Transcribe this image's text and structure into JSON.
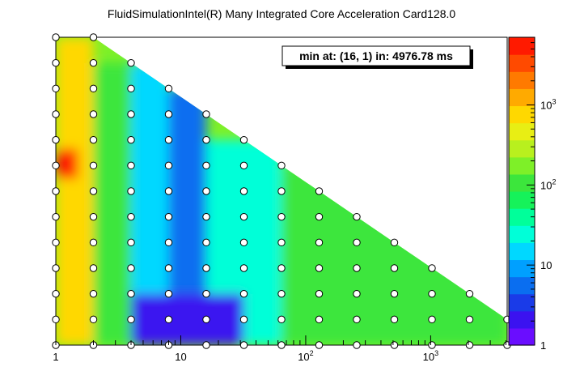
{
  "chart_data": {
    "type": "heatmap",
    "title": "FluidSimulationIntel(R) Many Integrated Core Acceleration Card128.0",
    "annotation": "min at: (16, 1) in: 4976.78 ms",
    "x_scale": "log2",
    "y_scale": "log2",
    "x_range": [
      1,
      4096
    ],
    "y_range": [
      1,
      4096
    ],
    "x_ticks": [
      {
        "value": 1,
        "label": "1"
      },
      {
        "value": 10,
        "label": "10"
      },
      {
        "value": 100,
        "label": "10",
        "sup": "2"
      },
      {
        "value": 1000,
        "label": "10",
        "sup": "3"
      }
    ],
    "z_scale": "log10",
    "z_range": [
      1,
      7000
    ],
    "z_ticks": [
      {
        "value": 1,
        "label": "1"
      },
      {
        "value": 10,
        "label": "10"
      },
      {
        "value": 100,
        "label": "10",
        "sup": "2"
      },
      {
        "value": 1000,
        "label": "10",
        "sup": "3"
      }
    ],
    "palette": [
      "#6a0dff",
      "#3b12f0",
      "#1a3be8",
      "#0a6ef0",
      "#00a0ff",
      "#00d8ff",
      "#00ffd8",
      "#00ff9a",
      "#16f25a",
      "#3ce63c",
      "#7ef028",
      "#b8f01e",
      "#e8ee14",
      "#ffd800",
      "#ffaa00",
      "#ff7a00",
      "#ff4a00",
      "#ff1a00"
    ],
    "grid_rows": [
      {
        "y": 4096,
        "x": [
          1,
          2
        ]
      },
      {
        "y": 2048,
        "x": [
          1,
          2,
          4
        ]
      },
      {
        "y": 1024,
        "x": [
          1,
          2,
          4,
          8
        ]
      },
      {
        "y": 512,
        "x": [
          1,
          2,
          4,
          8,
          16
        ]
      },
      {
        "y": 256,
        "x": [
          1,
          2,
          4,
          8,
          16,
          32
        ]
      },
      {
        "y": 128,
        "x": [
          1,
          2,
          4,
          8,
          16,
          32,
          64
        ]
      },
      {
        "y": 64,
        "x": [
          1,
          2,
          4,
          8,
          16,
          32,
          64,
          128
        ]
      },
      {
        "y": 32,
        "x": [
          1,
          2,
          4,
          8,
          16,
          32,
          64,
          128,
          256
        ]
      },
      {
        "y": 16,
        "x": [
          1,
          2,
          4,
          8,
          16,
          32,
          64,
          128,
          256,
          512
        ]
      },
      {
        "y": 8,
        "x": [
          1,
          2,
          4,
          8,
          16,
          32,
          64,
          128,
          256,
          512,
          1024
        ]
      },
      {
        "y": 4,
        "x": [
          1,
          2,
          4,
          8,
          16,
          32,
          64,
          128,
          256,
          512,
          1024,
          2048
        ]
      },
      {
        "y": 2,
        "x": [
          1,
          2,
          4,
          8,
          16,
          32,
          64,
          128,
          256,
          512,
          1024,
          2048,
          4096
        ]
      },
      {
        "y": 1,
        "x": [
          1,
          2,
          4,
          8,
          16,
          32,
          64,
          128,
          256,
          512,
          1024,
          2048,
          4096
        ]
      }
    ],
    "regions": [
      {
        "x": [
          1,
          2
        ],
        "y": [
          1,
          4096
        ],
        "z": 800
      },
      {
        "x": [
          1,
          1.5
        ],
        "y": [
          90,
          200
        ],
        "z": 4500
      },
      {
        "x": [
          2,
          4
        ],
        "y": [
          1,
          2048
        ],
        "z": 120
      },
      {
        "x": [
          4,
          8
        ],
        "y": [
          1,
          2048
        ],
        "z": 12
      },
      {
        "x": [
          8,
          16
        ],
        "y": [
          1,
          1024
        ],
        "z": 5
      },
      {
        "x": [
          16,
          64
        ],
        "y": [
          1,
          256
        ],
        "z": 30
      },
      {
        "x": [
          4,
          32
        ],
        "y": [
          1,
          4
        ],
        "z": 2
      },
      {
        "x": [
          64,
          4096
        ],
        "y": [
          1,
          128
        ],
        "z": 100
      }
    ]
  }
}
